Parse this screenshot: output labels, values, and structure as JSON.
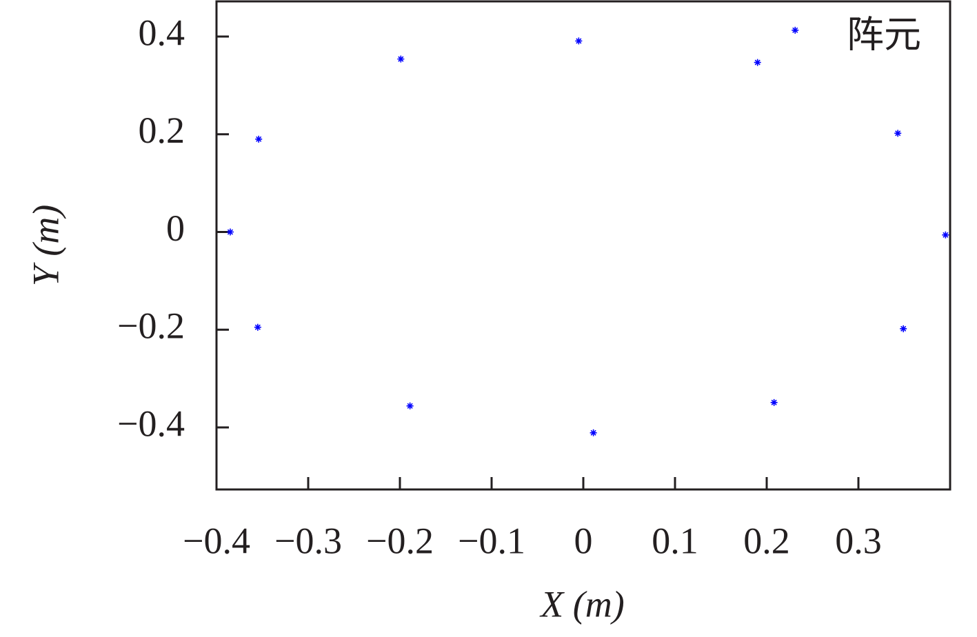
{
  "chart_data": {
    "type": "scatter",
    "xlabel": "X (m)",
    "ylabel": "Y (m)",
    "xlim": [
      -0.4,
      0.4
    ],
    "ylim": [
      -0.527,
      0.472
    ],
    "xticks": [
      {
        "value": -0.4,
        "label": "−0.4"
      },
      {
        "value": -0.3,
        "label": "−0.3"
      },
      {
        "value": -0.2,
        "label": "−0.2"
      },
      {
        "value": -0.1,
        "label": "−0.1"
      },
      0,
      0.1,
      0.2,
      0.3
    ],
    "yticks": [
      {
        "value": -0.4,
        "label": "−0.4"
      },
      {
        "value": -0.2,
        "label": "−0.2"
      },
      0,
      0.2,
      0.4
    ],
    "legend": "upper right",
    "series": [
      {
        "name": "阵元",
        "color": "#0000ff",
        "x": [
          -0.385,
          -0.354,
          -0.355,
          -0.199,
          -0.189,
          -0.005,
          0.011,
          0.19,
          0.231,
          0.208,
          0.343,
          0.349,
          0.395
        ],
        "values": [
          0,
          0.19,
          -0.195,
          0.354,
          -0.356,
          0.391,
          -0.411,
          0.347,
          0.413,
          -0.349,
          0.202,
          -0.198,
          -0.006
        ]
      }
    ]
  }
}
